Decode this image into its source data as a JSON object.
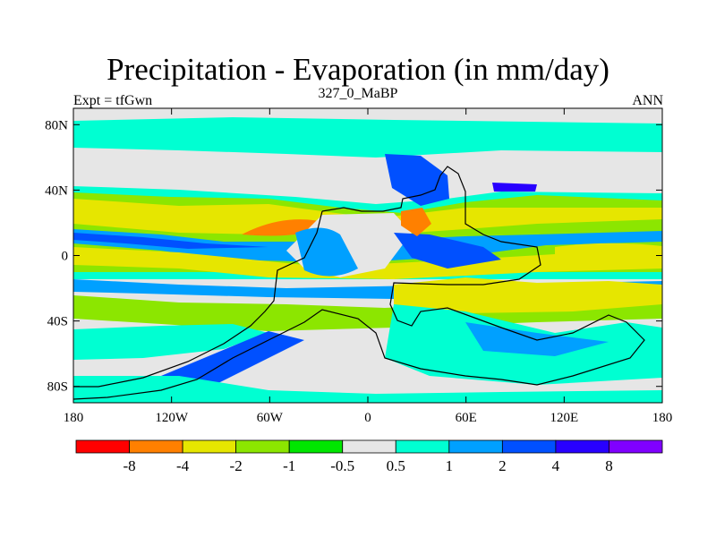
{
  "chart_data": {
    "type": "heatmap",
    "title": "Precipitation - Evaporation (in mm/day)",
    "subtitle": "327_0_MaBP",
    "left_label": "Expt = tfGwn",
    "right_label": "ANN",
    "x_ticks": [
      "180",
      "120W",
      "60W",
      "0",
      "60E",
      "120E",
      "180"
    ],
    "y_ticks": [
      "80N",
      "40N",
      "0",
      "40S",
      "80S"
    ],
    "xlim": [
      -180,
      180
    ],
    "ylim": [
      -90,
      90
    ],
    "colorbar": {
      "levels": [
        "-8",
        "-4",
        "-2",
        "-1",
        "-0.5",
        "0.5",
        "1",
        "2",
        "4",
        "8"
      ],
      "colors": [
        "#ff0000",
        "#ff8000",
        "#e6e600",
        "#8ce600",
        "#00e600",
        "#e6e6e6",
        "#00ffd2",
        "#00a0ff",
        "#0050ff",
        "#2800ff",
        "#8000ff"
      ]
    }
  }
}
